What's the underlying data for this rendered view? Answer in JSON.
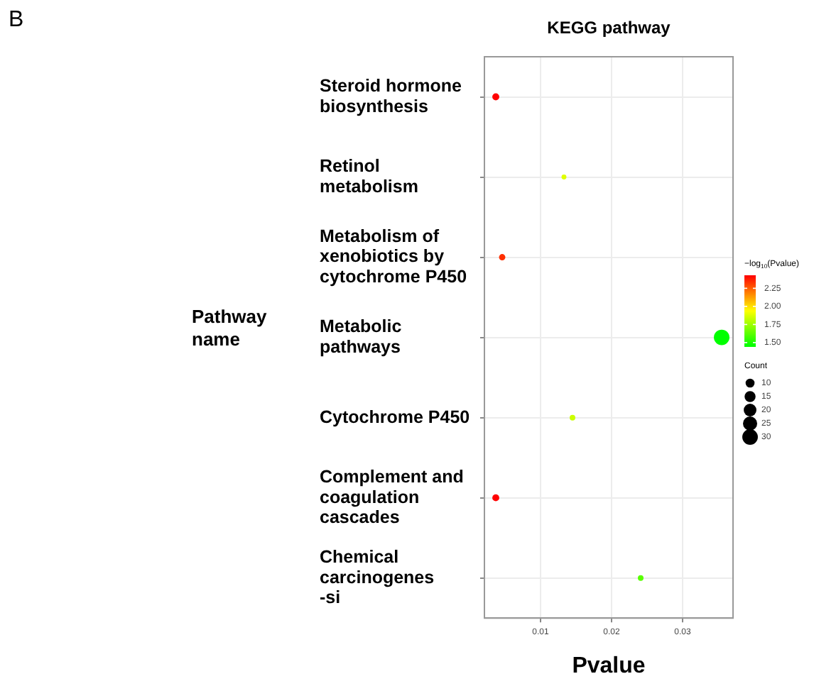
{
  "chart_data": {
    "type": "bubble",
    "title": "KEGG pathway",
    "xlabel": "Pvalue",
    "ylabel": "Pathway name",
    "clabel": "−log$_{10}$(Pvalue)",
    "legend_title": "Count",
    "orientation": "horizontal",
    "categories": [
      "Steroid hormone biosynthesis",
      "Retinol metabolism",
      "Metabolism of xenobiotics by cytochrome P450",
      "Metabolic pathways",
      "Cytochrome P450",
      "Complement and coagulation cascades",
      "Chemical carcinogenes -si"
    ],
    "values": [
      0.0037,
      0.0133,
      0.0046,
      0.0355,
      0.0145,
      0.0037,
      0.0241
    ],
    "sizes": [
      6,
      3,
      5,
      30,
      4,
      6,
      4
    ],
    "cvalues": [
      2.43,
      1.88,
      2.34,
      1.45,
      1.84,
      2.43,
      1.62
    ],
    "size_legend": [
      10,
      15,
      20,
      25,
      30
    ],
    "clim": [
      1.45,
      2.43
    ],
    "cticks": [
      {
        "value": 1.5,
        "label": "1.50"
      },
      {
        "value": 1.75,
        "label": "1.75"
      },
      {
        "value": 2,
        "label": "2.00"
      },
      {
        "value": 2.25,
        "label": "2.25"
      }
    ],
    "xlim": [
      0.0021,
      0.0371
    ],
    "xticks": [
      {
        "value": 0.01,
        "label": "0.01"
      },
      {
        "value": 0.02,
        "label": "0.02"
      },
      {
        "value": 0.03,
        "label": "0.03"
      }
    ],
    "grid": true,
    "annotations": [
      "B"
    ]
  }
}
